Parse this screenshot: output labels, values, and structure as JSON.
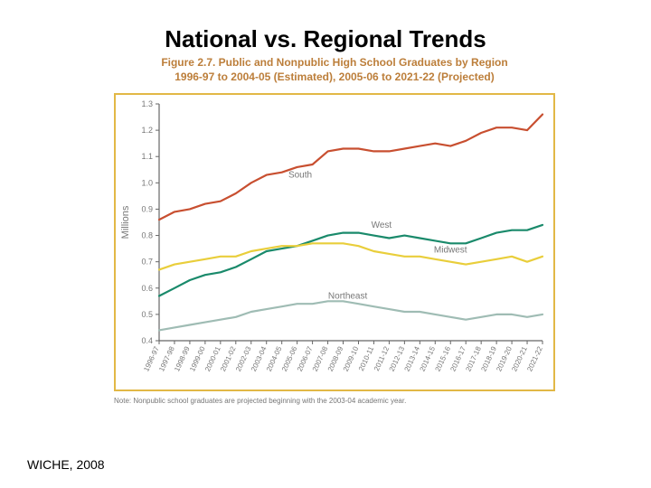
{
  "title": {
    "text": "National vs. Regional Trends",
    "fontsize": 26,
    "fontweight": 700,
    "color": "#000000"
  },
  "figure": {
    "title_line1": "Figure 2.7.  Public and Nonpublic High School Graduates by Region",
    "title_line2": "1996-97 to 2004-05 (Estimated), 2005-06 to 2021-22 (Projected)",
    "title_fontsize": 12,
    "title_color": "#bc7e3a",
    "border_color": "#e2b846",
    "chart": {
      "type": "line",
      "background_color": "#ffffff",
      "ylabel": "Millions",
      "label_color": "#777777",
      "label_fontsize": 11,
      "axis_color": "#666666",
      "tick_color": "#666666",
      "tick_fontsize": 9,
      "xtick_fontsize": 8,
      "grid_on": false,
      "ylim": [
        0.4,
        1.3
      ],
      "ytick_step": 0.1,
      "yticks": [
        "0.4",
        "0.5",
        "0.6",
        "0.7",
        "0.8",
        "0.9",
        "1.0",
        "1.1",
        "1.2",
        "1.3"
      ],
      "x_categories": [
        "1996-97",
        "1997-98",
        "1998-99",
        "1999-00",
        "2000-01",
        "2001-02",
        "2002-03",
        "2003-04",
        "2004-05",
        "2005-06",
        "2006-07",
        "2007-08",
        "2008-09",
        "2009-10",
        "2010-11",
        "2011-12",
        "2012-13",
        "2013-14",
        "2014-15",
        "2015-16",
        "2016-17",
        "2017-18",
        "2018-19",
        "2019-20",
        "2020-21",
        "2021-22"
      ],
      "line_width": 2.2,
      "series": [
        {
          "name": "South",
          "color": "#c84f30",
          "label": "South",
          "label_xy": [
            9.2,
            1.02
          ],
          "values": [
            0.86,
            0.89,
            0.9,
            0.92,
            0.93,
            0.96,
            1.0,
            1.03,
            1.04,
            1.06,
            1.07,
            1.12,
            1.13,
            1.13,
            1.12,
            1.12,
            1.13,
            1.14,
            1.15,
            1.14,
            1.16,
            1.19,
            1.21,
            1.21,
            1.2,
            1.26
          ]
        },
        {
          "name": "West",
          "color": "#1a8a6b",
          "label": "West",
          "label_xy": [
            14.5,
            0.83
          ],
          "values": [
            0.57,
            0.6,
            0.63,
            0.65,
            0.66,
            0.68,
            0.71,
            0.74,
            0.75,
            0.76,
            0.78,
            0.8,
            0.81,
            0.81,
            0.8,
            0.79,
            0.8,
            0.79,
            0.78,
            0.77,
            0.77,
            0.79,
            0.81,
            0.82,
            0.82,
            0.84
          ]
        },
        {
          "name": "Midwest",
          "color": "#e9ce3b",
          "label": "Midwest",
          "label_xy": [
            19.0,
            0.735
          ],
          "values": [
            0.67,
            0.69,
            0.7,
            0.71,
            0.72,
            0.72,
            0.74,
            0.75,
            0.76,
            0.76,
            0.77,
            0.77,
            0.77,
            0.76,
            0.74,
            0.73,
            0.72,
            0.72,
            0.71,
            0.7,
            0.69,
            0.7,
            0.71,
            0.72,
            0.7,
            0.72
          ]
        },
        {
          "name": "Northeast",
          "color": "#9fbcb4",
          "label": "Northeast",
          "label_xy": [
            12.3,
            0.56
          ],
          "values": [
            0.44,
            0.45,
            0.46,
            0.47,
            0.48,
            0.49,
            0.51,
            0.52,
            0.53,
            0.54,
            0.54,
            0.55,
            0.55,
            0.54,
            0.53,
            0.52,
            0.51,
            0.51,
            0.5,
            0.49,
            0.48,
            0.49,
            0.5,
            0.5,
            0.49,
            0.5
          ]
        }
      ]
    },
    "note": {
      "text": "Note: Nonpublic school graduates are projected beginning with the 2003-04 academic year.",
      "fontsize": 8,
      "color": "#777777"
    }
  },
  "source": {
    "text": "WICHE, 2008",
    "fontsize": 14,
    "color": "#000000"
  }
}
